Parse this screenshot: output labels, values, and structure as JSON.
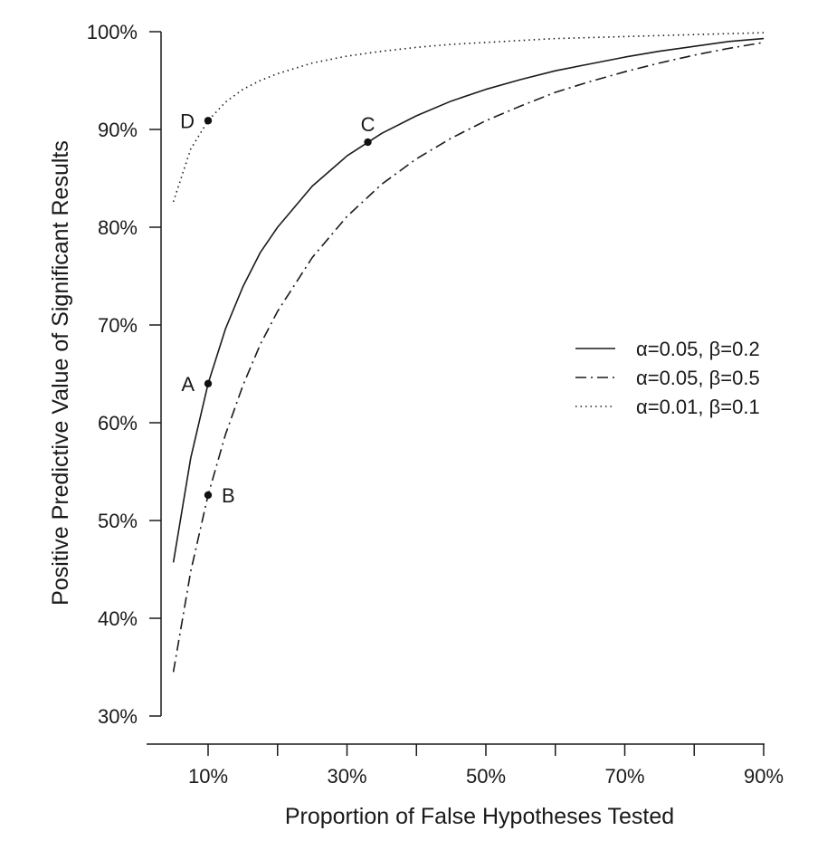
{
  "chart_data": {
    "type": "line",
    "title": "",
    "xlabel": "Proportion of False Hypotheses Tested",
    "ylabel": "Positive Predictive Value of Significant Results",
    "xlim": [
      0,
      90
    ],
    "ylim": [
      30,
      100
    ],
    "x_ticks": [
      10,
      20,
      30,
      40,
      50,
      60,
      70,
      80,
      90
    ],
    "x_tick_labels": [
      {
        "value": 10,
        "label": "10%"
      },
      {
        "value": 30,
        "label": "30%"
      },
      {
        "value": 50,
        "label": "50%"
      },
      {
        "value": 70,
        "label": "70%"
      },
      {
        "value": 90,
        "label": "90%"
      }
    ],
    "y_ticks": [
      30,
      40,
      50,
      60,
      70,
      80,
      90,
      100
    ],
    "y_tick_labels": [
      "30%",
      "40%",
      "50%",
      "60%",
      "70%",
      "80%",
      "90%",
      "100%"
    ],
    "grid": false,
    "legend_position": "right",
    "series": [
      {
        "name": "α=0.05, β=0.2",
        "dash": "solid",
        "color": "#1a1a1a",
        "x": [
          5,
          7.5,
          10,
          12.5,
          15,
          17.5,
          20,
          25,
          30,
          35,
          40,
          45,
          50,
          55,
          60,
          65,
          70,
          75,
          80,
          85,
          90
        ],
        "y": [
          45.7,
          56.4,
          64.0,
          69.6,
          73.9,
          77.4,
          80.0,
          84.2,
          87.3,
          89.6,
          91.4,
          92.9,
          94.1,
          95.1,
          96.0,
          96.7,
          97.4,
          98.0,
          98.5,
          99.0,
          99.3
        ]
      },
      {
        "name": "α=0.05, β=0.5",
        "dash": "dashdot",
        "color": "#1a1a1a",
        "x": [
          5,
          7.5,
          10,
          12.5,
          15,
          17.5,
          20,
          25,
          30,
          35,
          40,
          45,
          50,
          55,
          60,
          65,
          70,
          75,
          80,
          85,
          90
        ],
        "y": [
          34.5,
          44.8,
          52.6,
          58.8,
          63.8,
          68.0,
          71.4,
          76.9,
          81.1,
          84.4,
          87.0,
          89.1,
          90.9,
          92.4,
          93.8,
          94.9,
          95.9,
          96.8,
          97.6,
          98.3,
          98.9
        ]
      },
      {
        "name": "α=0.01, β=0.1",
        "dash": "dotted",
        "color": "#1a1a1a",
        "x": [
          5,
          7.5,
          10,
          12.5,
          15,
          17.5,
          20,
          25,
          30,
          35,
          40,
          45,
          50,
          55,
          60,
          65,
          70,
          75,
          80,
          85,
          90
        ],
        "y": [
          82.6,
          88.0,
          90.9,
          92.8,
          94.1,
          95.0,
          95.7,
          96.8,
          97.5,
          98.0,
          98.4,
          98.7,
          98.9,
          99.1,
          99.3,
          99.4,
          99.5,
          99.6,
          99.7,
          99.8,
          99.9
        ]
      }
    ],
    "points": [
      {
        "label": "A",
        "x": 10,
        "y": 64.0,
        "label_side": "left"
      },
      {
        "label": "B",
        "x": 10,
        "y": 52.6,
        "label_side": "right"
      },
      {
        "label": "C",
        "x": 33,
        "y": 88.7,
        "label_side": "above"
      },
      {
        "label": "D",
        "x": 10,
        "y": 90.9,
        "label_side": "left"
      }
    ]
  }
}
